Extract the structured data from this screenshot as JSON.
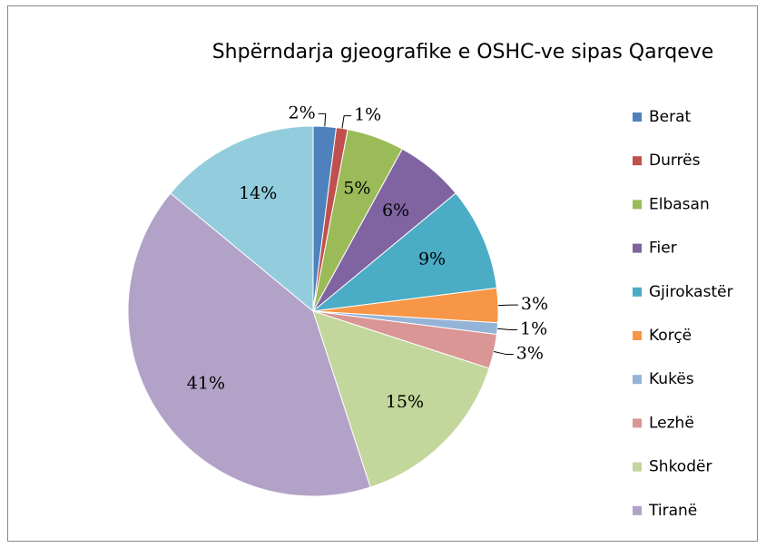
{
  "chart_data": {
    "type": "pie",
    "title": "Shpërndarja gjeografike e OSHC-ve sipas Qarqeve",
    "categories": [
      "Berat",
      "Durrës",
      "Elbasan",
      "Fier",
      "Gjirokastër",
      "Korçë",
      "Kukës",
      "Lezhë",
      "Shkodër",
      "Tiranë",
      null
    ],
    "values": [
      2,
      1,
      5,
      6,
      9,
      3,
      1,
      3,
      15,
      41,
      14
    ],
    "value_labels": [
      "2%",
      "1%",
      "5%",
      "6%",
      "9%",
      "3%",
      "1%",
      "3%",
      "15%",
      "41%",
      "14%"
    ],
    "colors": [
      "#4f81bd",
      "#c0504d",
      "#9bbb59",
      "#8064a2",
      "#4bacc6",
      "#f79646",
      "#95b3d7",
      "#d99694",
      "#c3d69b",
      "#b2a2c7",
      "#93cddd"
    ],
    "legend": "right"
  }
}
